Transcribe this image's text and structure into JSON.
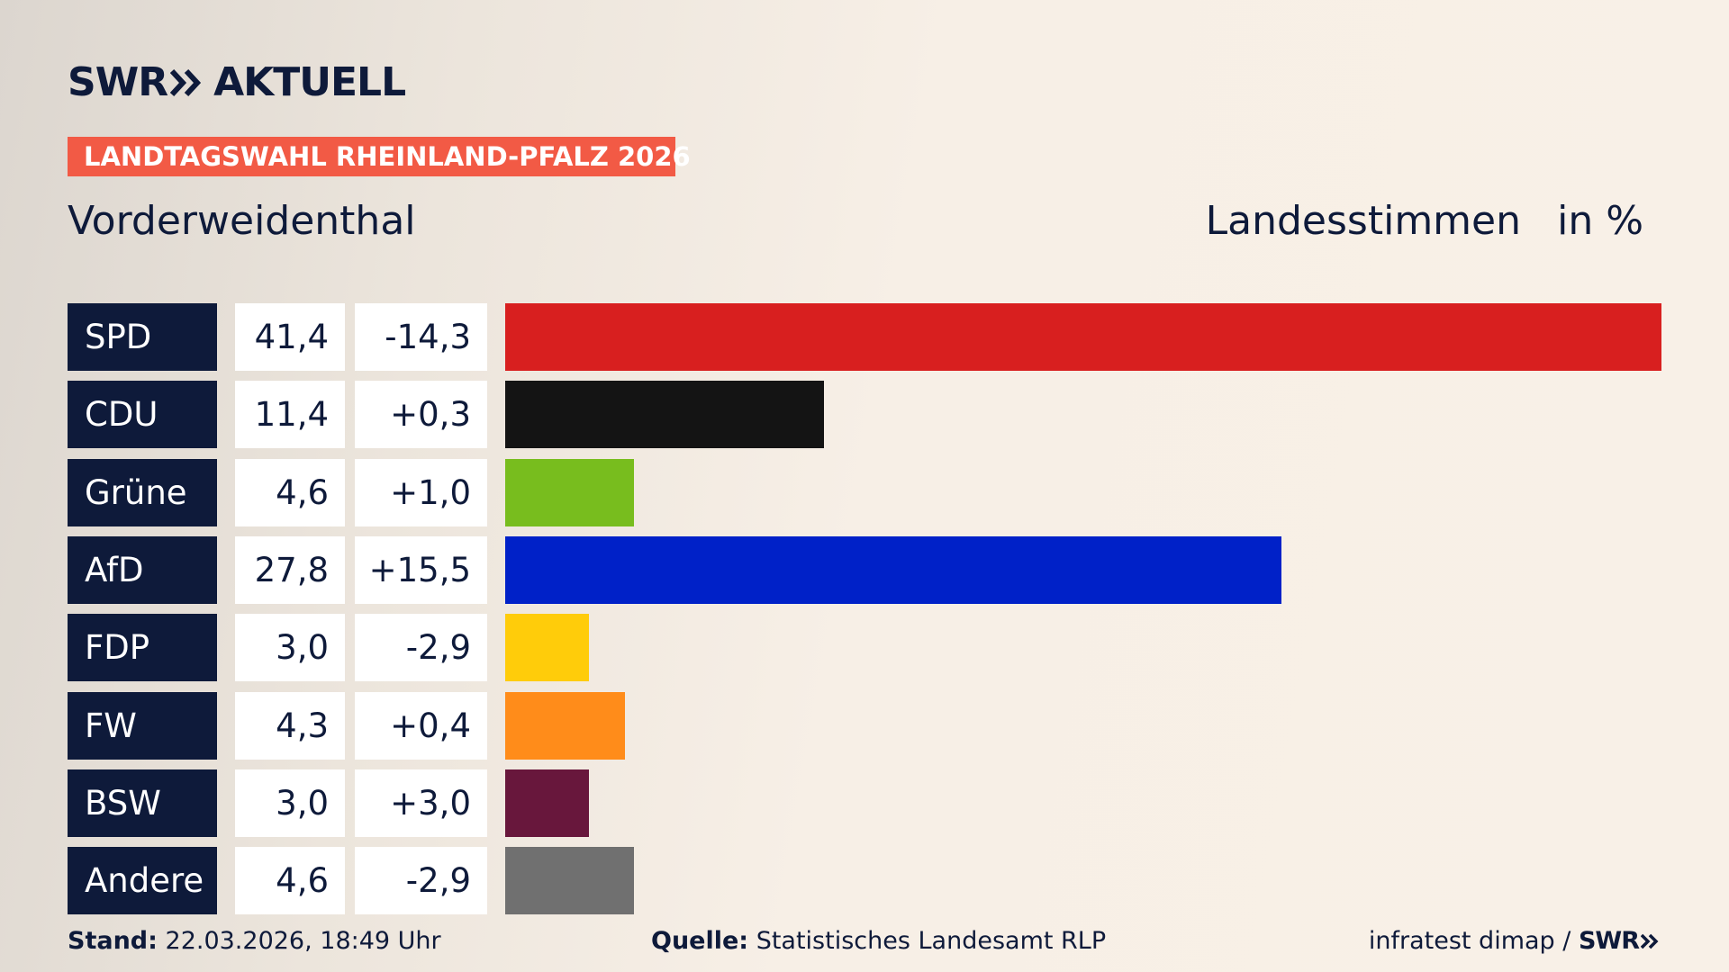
{
  "chart_data": {
    "type": "bar",
    "brand": "SWR",
    "brand_suffix": "AKTUELL",
    "banner": "LANDTAGSWAHL RHEINLAND-PFALZ 2026",
    "title": "Vorderweidenthal",
    "measure": "Landesstimmen",
    "unit": "in %",
    "categories": [
      "SPD",
      "CDU",
      "Grüne",
      "AfD",
      "FDP",
      "FW",
      "BSW",
      "Andere"
    ],
    "values": [
      41.4,
      11.4,
      4.6,
      27.8,
      3.0,
      4.3,
      3.0,
      4.6
    ],
    "value_labels": [
      "41,4",
      "11,4",
      "4,6",
      "27,8",
      "3,0",
      "4,3",
      "3,0",
      "4,6"
    ],
    "changes": [
      "-14,3",
      "+0,3",
      "+1,0",
      "+15,5",
      "-2,9",
      "+0,4",
      "+3,0",
      "-2,9"
    ],
    "colors": [
      "#d81f1f",
      "#141414",
      "#78bd1e",
      "#0021c8",
      "#ffcc0a",
      "#ff8c1a",
      "#68173c",
      "#707070"
    ],
    "footer": {
      "stand_label": "Stand:",
      "stand": "22.03.2026, 18:49 Uhr",
      "source_label": "Quelle:",
      "source": "Statistisches Landesamt RLP",
      "credit": "infratest dimap /",
      "credit_brand": "SWR"
    }
  }
}
